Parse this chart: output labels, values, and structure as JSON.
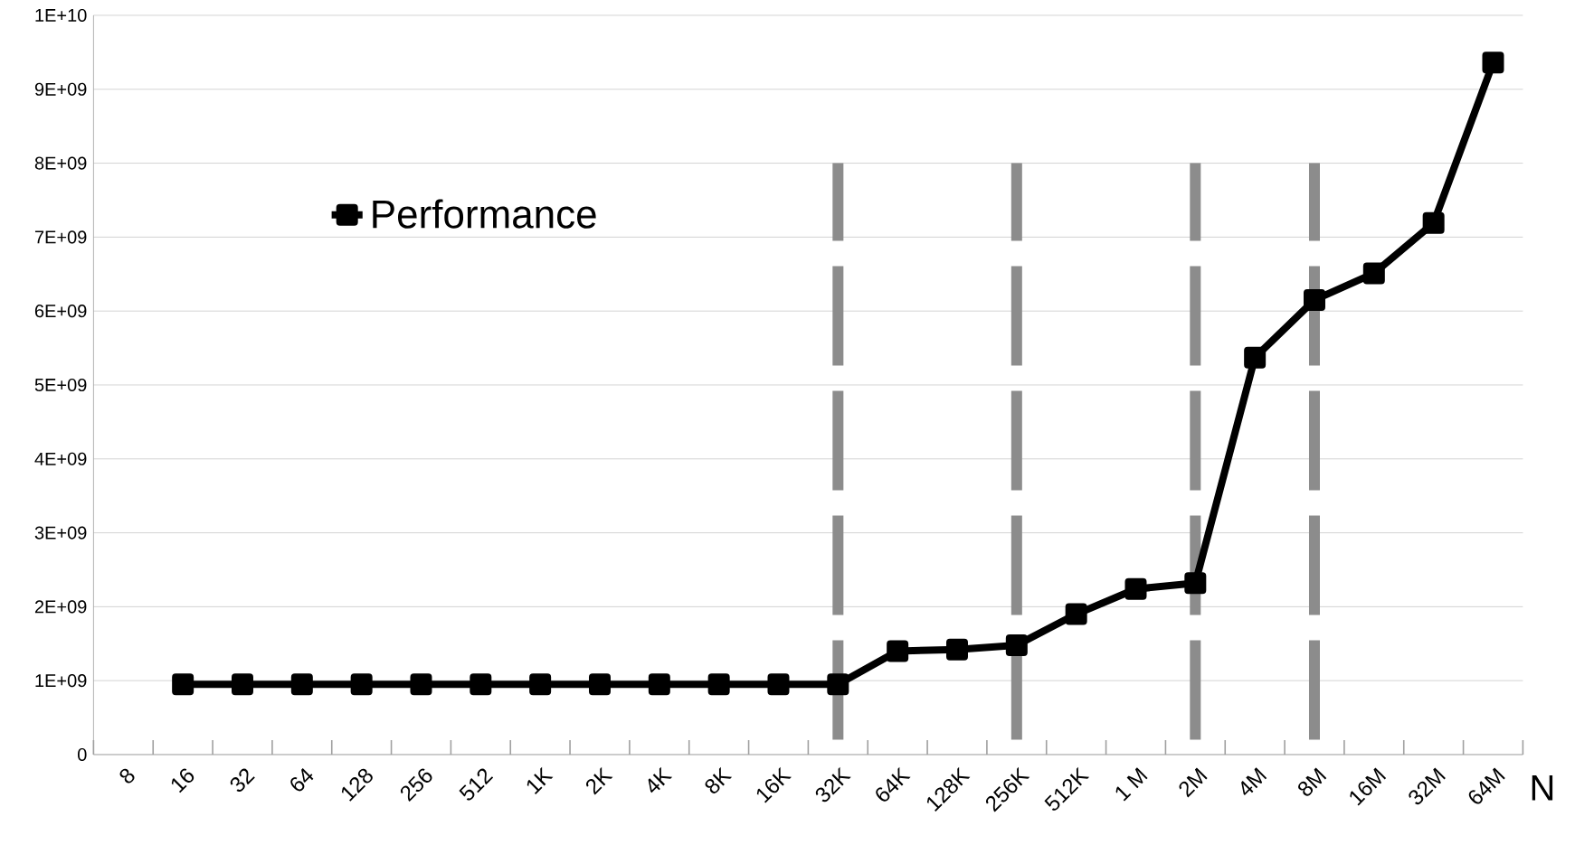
{
  "chart_data": {
    "type": "line",
    "xlabel": "N",
    "categories": [
      "8",
      "16",
      "32",
      "64",
      "128",
      "256",
      "512",
      "1K",
      "2K",
      "4K",
      "8K",
      "16K",
      "32K",
      "64K",
      "128K",
      "256K",
      "512K",
      "1 M",
      "2M",
      "4M",
      "8M",
      "16M",
      "32M",
      "64M"
    ],
    "series": [
      {
        "name": "Performance",
        "color": "#000000",
        "values": [
          null,
          950000000,
          950000000,
          950000000,
          950000000,
          950000000,
          950000000,
          950000000,
          950000000,
          950000000,
          950000000,
          950000000,
          950000000,
          1400000000,
          1420000000,
          1480000000,
          1900000000,
          2240000000,
          2320000000,
          5370000000,
          6150000000,
          6510000000,
          7190000000,
          9360000000
        ]
      }
    ],
    "ylim": [
      0,
      10000000000
    ],
    "yticks": [
      0,
      {
        "value": 1000000000,
        "label": "1E+09"
      },
      {
        "value": 2000000000,
        "label": "2E+09"
      },
      {
        "value": 3000000000,
        "label": "3E+09"
      },
      {
        "value": 4000000000,
        "label": "4E+09"
      },
      {
        "value": 5000000000,
        "label": "5E+09"
      },
      {
        "value": 6000000000,
        "label": "6E+09"
      },
      {
        "value": 7000000000,
        "label": "7E+09"
      },
      {
        "value": 8000000000,
        "label": "8E+09"
      },
      {
        "value": 9000000000,
        "label": "9E+09"
      },
      {
        "value": 10000000000,
        "label": "1E+10"
      }
    ],
    "ref_lines": [
      {
        "axis": "x",
        "value": "32K",
        "color": "#8c8c8c",
        "line_style": "dashed"
      },
      {
        "axis": "x",
        "value": "256K",
        "color": "#8c8c8c",
        "line_style": "dashed"
      },
      {
        "axis": "x",
        "value": "2M",
        "color": "#8c8c8c",
        "line_style": "dashed"
      },
      {
        "axis": "x",
        "value": "8M",
        "color": "#8c8c8c",
        "line_style": "dashed"
      }
    ],
    "grid": "y",
    "legend": "top left",
    "marker": "square",
    "line_style": "solid"
  }
}
